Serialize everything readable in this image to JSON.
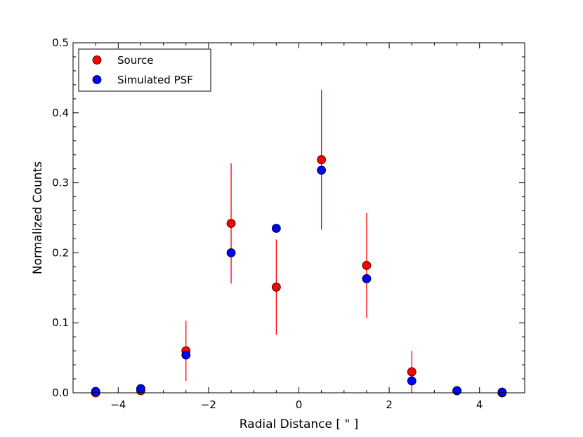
{
  "chart_data": {
    "type": "scatter",
    "title": "",
    "xlabel": "Radial Distance [ \" ]",
    "ylabel": "Normalized Counts",
    "xlim": [
      -5,
      5
    ],
    "ylim": [
      0,
      0.5
    ],
    "x_major_ticks": [
      -4,
      -2,
      0,
      2,
      4
    ],
    "x_tick_labels": [
      "−4",
      "−2",
      "0",
      "2",
      "4"
    ],
    "y_major_ticks": [
      0.0,
      0.1,
      0.2,
      0.3,
      0.4,
      0.5
    ],
    "y_tick_labels": [
      "0.0",
      "0.1",
      "0.2",
      "0.3",
      "0.4",
      "0.5"
    ],
    "grid": false,
    "legend_position": "top-left",
    "series": [
      {
        "name": "Source",
        "color": "#ff0000",
        "x": [
          -4.5,
          -3.5,
          -2.5,
          -1.5,
          -0.5,
          0.5,
          1.5,
          2.5,
          3.5,
          4.5
        ],
        "y": [
          0.0,
          0.003,
          0.06,
          0.242,
          0.151,
          0.333,
          0.182,
          0.03,
          0.003,
          0.0
        ],
        "yerr": [
          0.0,
          0.003,
          0.043,
          0.086,
          0.068,
          0.1,
          0.075,
          0.03,
          0.0,
          0.0
        ]
      },
      {
        "name": "Simulated PSF",
        "color": "#0000ff",
        "x": [
          -4.5,
          -3.5,
          -2.5,
          -1.5,
          -0.5,
          0.5,
          1.5,
          2.5,
          3.5,
          4.5
        ],
        "y": [
          0.002,
          0.006,
          0.054,
          0.2,
          0.235,
          0.318,
          0.163,
          0.017,
          0.003,
          0.001
        ]
      }
    ]
  }
}
